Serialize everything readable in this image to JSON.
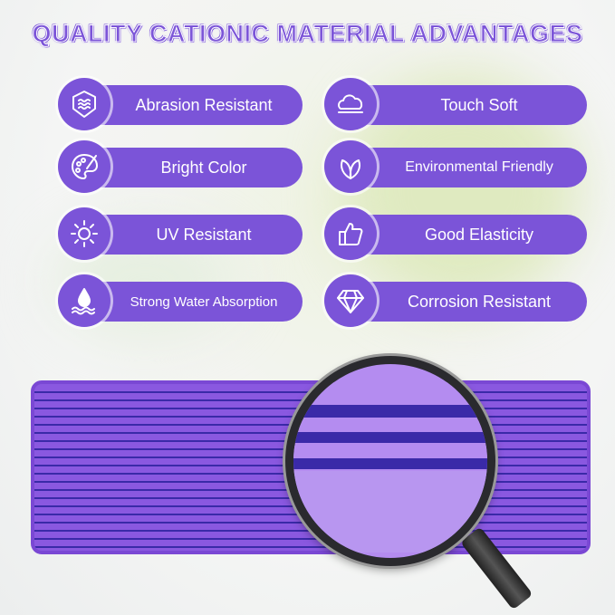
{
  "title": "QUALITY CATIONIC MATERIAL ADVANTAGES",
  "features": [
    {
      "label": "Abrasion Resistant",
      "icon": "shield-waves-icon"
    },
    {
      "label": "Touch Soft",
      "icon": "cloud-icon"
    },
    {
      "label": "Bright Color",
      "icon": "palette-icon"
    },
    {
      "label": "Environmental Friendly",
      "icon": "leaves-icon"
    },
    {
      "label": "UV Resistant",
      "icon": "sun-icon"
    },
    {
      "label": "Good Elasticity",
      "icon": "thumbs-up-icon"
    },
    {
      "label": "Strong Water Absorption",
      "icon": "water-drop-icon"
    },
    {
      "label": "Corrosion Resistant",
      "icon": "diamond-icon"
    }
  ],
  "colors": {
    "accent": "#7b54d8",
    "stripe_dark": "#3a2aa8",
    "stripe_light": "#b996f2"
  }
}
